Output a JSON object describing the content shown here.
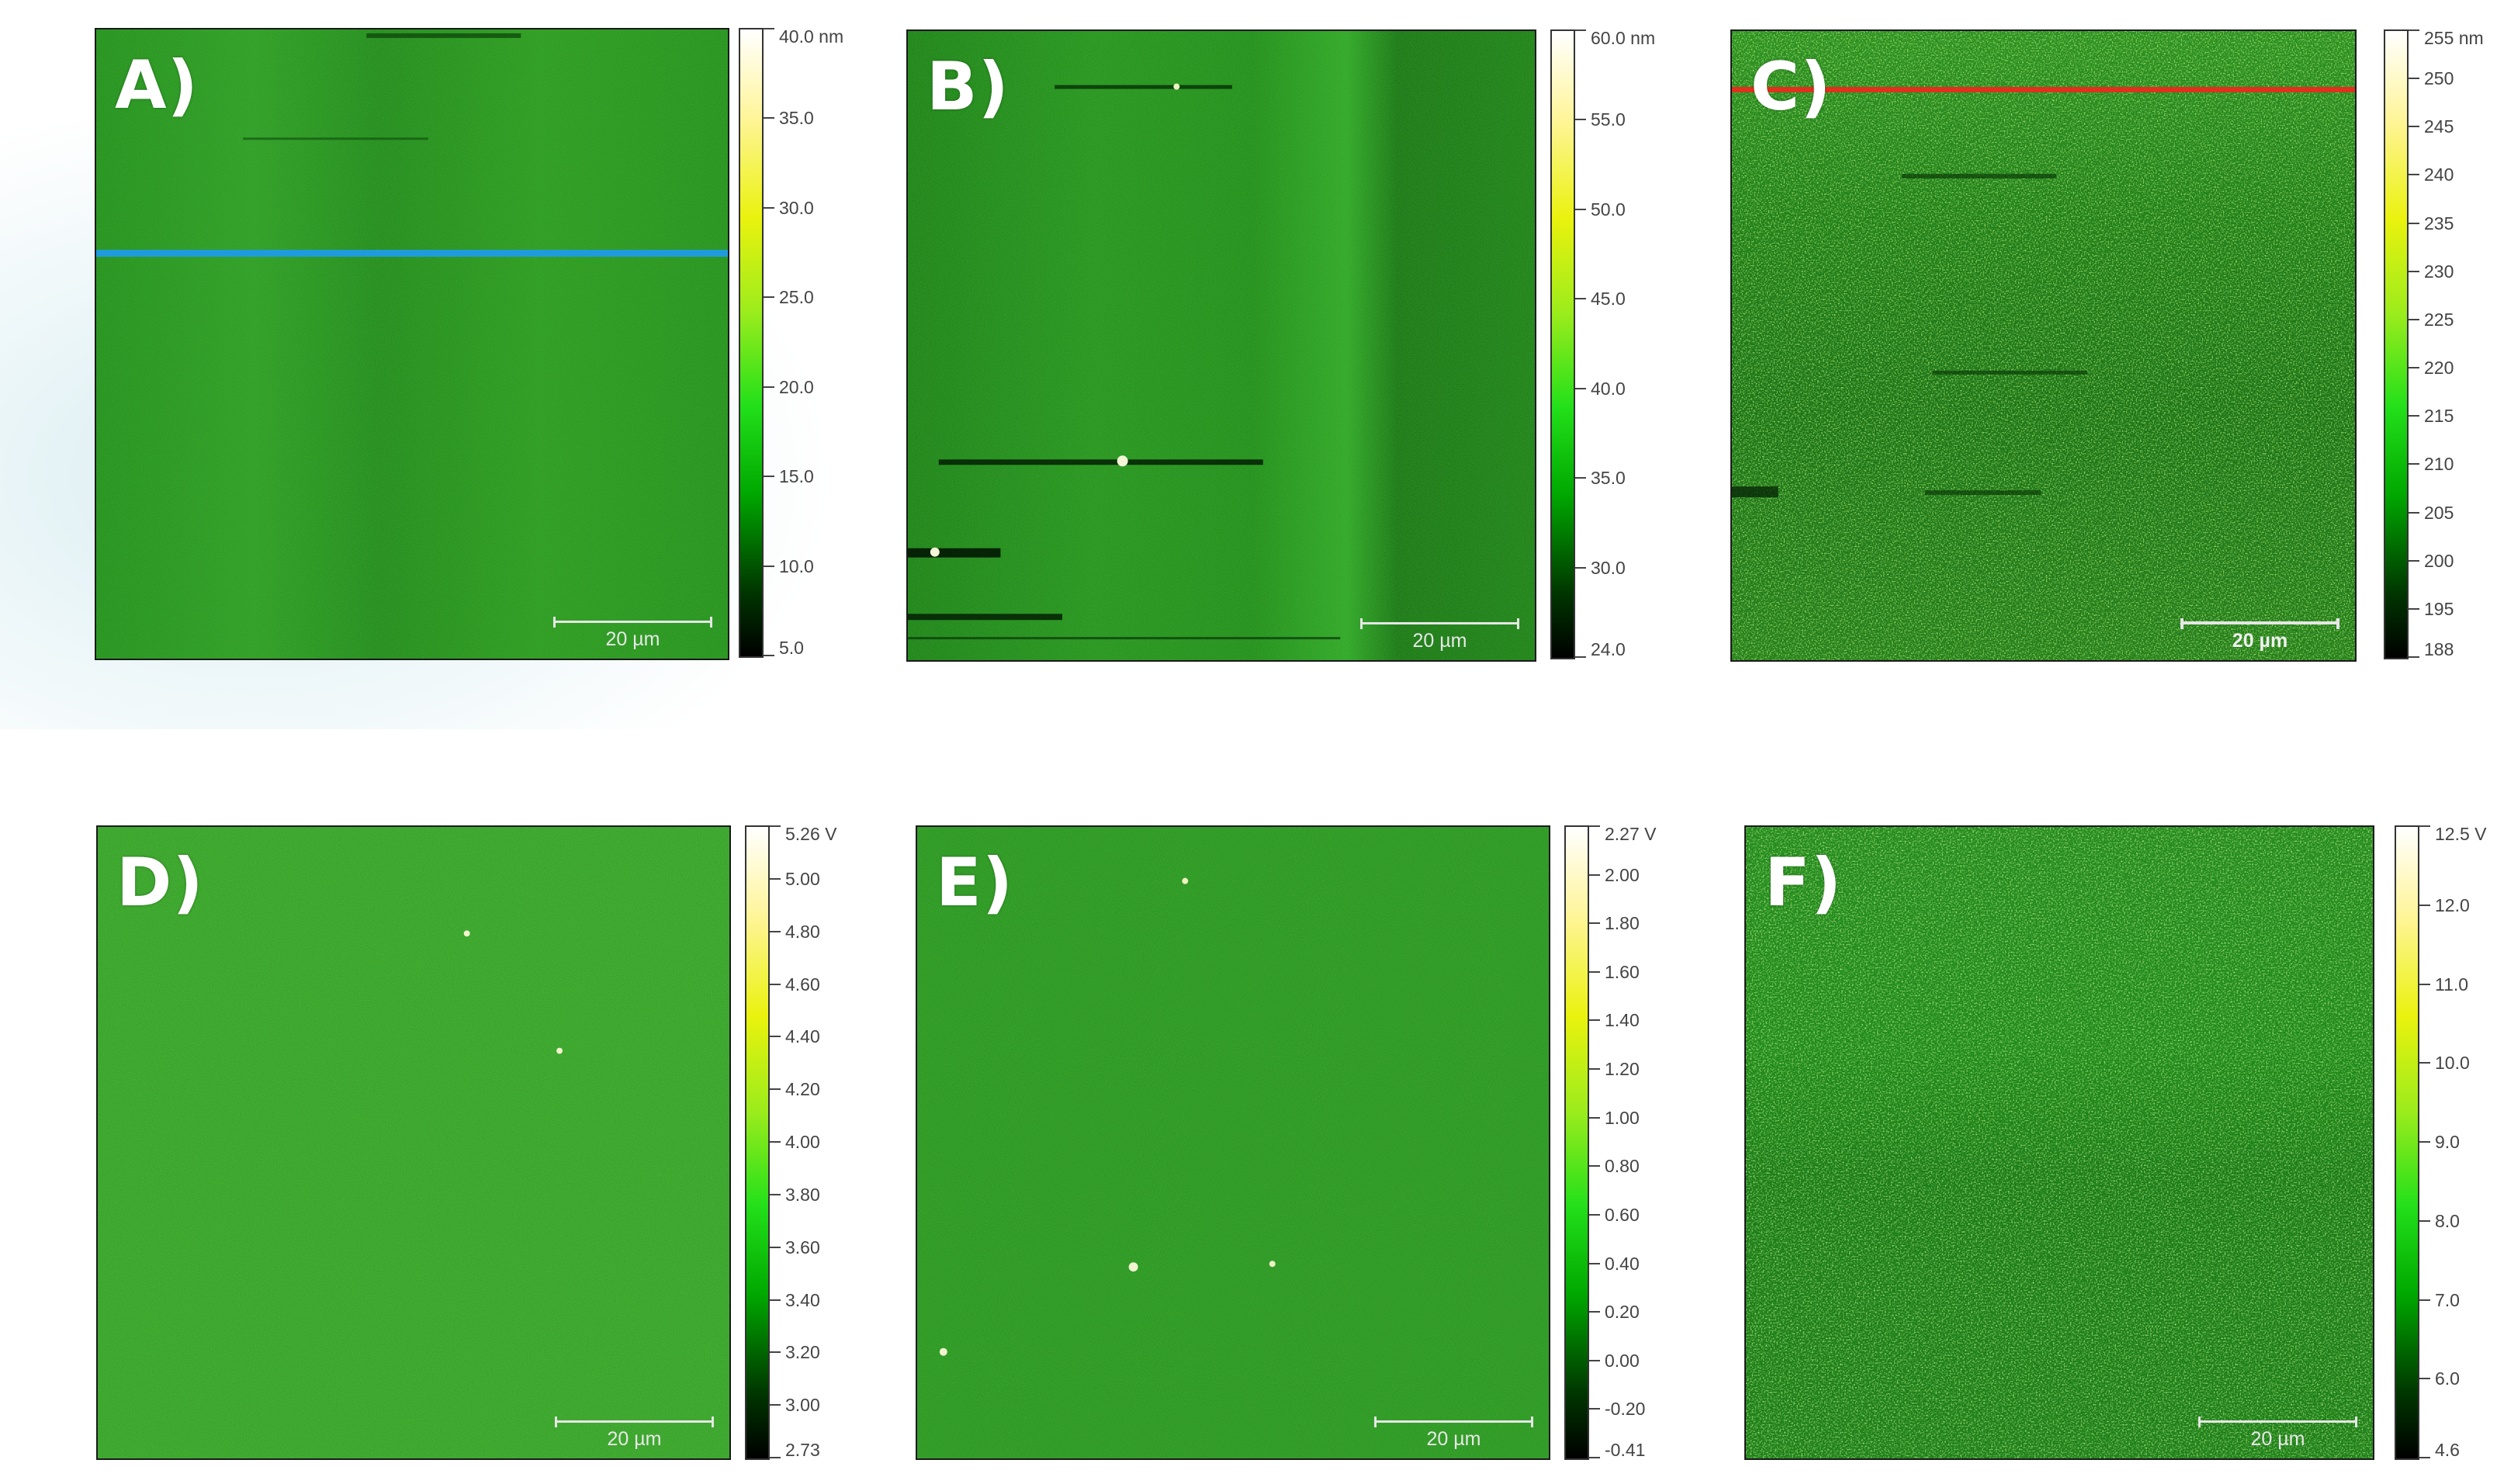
{
  "panels": [
    {
      "id": "A",
      "label": "A)",
      "scale_label": "20 µm",
      "colorbar_ticks": [
        "40.0 nm",
        "35.0",
        "30.0",
        "25.0",
        "20.0",
        "15.0",
        "10.0",
        "5.0"
      ],
      "line_color": "#1f9bdc"
    },
    {
      "id": "B",
      "label": "B)",
      "scale_label": "20 µm",
      "colorbar_ticks": [
        "60.0 nm",
        "55.0",
        "50.0",
        "45.0",
        "40.0",
        "35.0",
        "30.0",
        "24.0"
      ]
    },
    {
      "id": "C",
      "label": "C)",
      "scale_label": "20 µm",
      "colorbar_ticks": [
        "255 nm",
        "250",
        "245",
        "240",
        "235",
        "230",
        "225",
        "220",
        "215",
        "210",
        "205",
        "200",
        "195",
        "188"
      ],
      "line_color": "#e0301e"
    },
    {
      "id": "D",
      "label": "D)",
      "scale_label": "20 µm",
      "colorbar_ticks": [
        "5.26 V",
        "5.00",
        "4.80",
        "4.60",
        "4.40",
        "4.20",
        "4.00",
        "3.80",
        "3.60",
        "3.40",
        "3.20",
        "3.00",
        "2.73"
      ]
    },
    {
      "id": "E",
      "label": "E)",
      "scale_label": "20 µm",
      "colorbar_ticks": [
        "2.27 V",
        "2.00",
        "1.80",
        "1.60",
        "1.40",
        "1.20",
        "1.00",
        "0.80",
        "0.60",
        "0.40",
        "0.20",
        "0.00",
        "-0.20",
        "-0.41"
      ]
    },
    {
      "id": "F",
      "label": "F)",
      "scale_label": "20 µm",
      "colorbar_ticks": [
        "12.5 V",
        "12.0",
        "11.0",
        "10.0",
        "9.0",
        "8.0",
        "7.0",
        "6.0",
        "4.6"
      ]
    }
  ],
  "colors": {
    "colormap": [
      "#000000",
      "#003400",
      "#00a800",
      "#23e01a",
      "#9cec1c",
      "#eaf20e",
      "#fff59a",
      "#ffffff"
    ],
    "line_A": "#1f9bdc",
    "line_C": "#e0301e"
  }
}
